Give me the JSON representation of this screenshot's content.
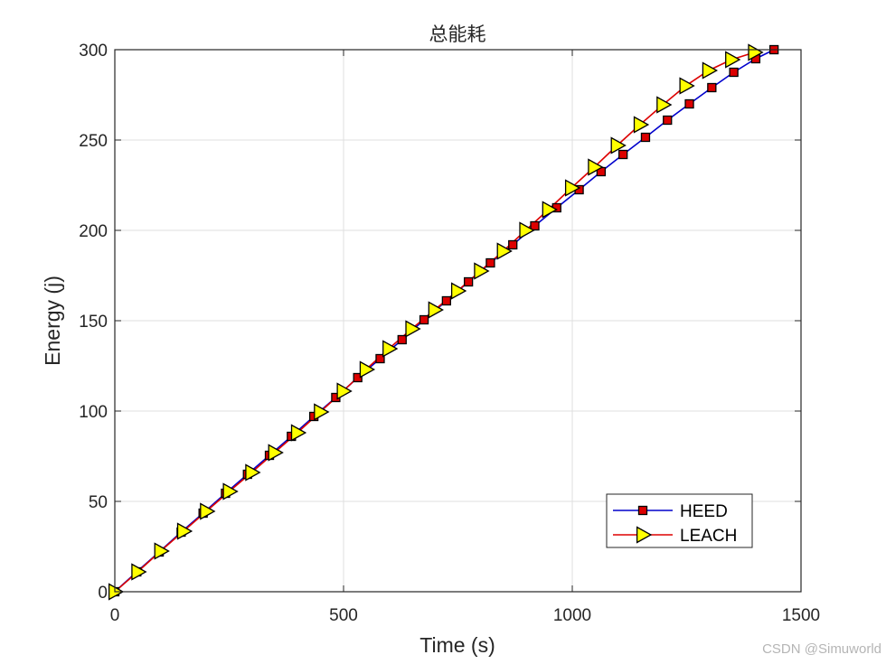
{
  "chart_data": {
    "type": "line",
    "title": "总能耗",
    "xlabel": "Time (s)",
    "ylabel": "Energy (j)",
    "xlim": [
      0,
      1500
    ],
    "ylim": [
      0,
      300
    ],
    "xticks": [
      0,
      500,
      1000,
      1500
    ],
    "yticks": [
      0,
      50,
      100,
      150,
      200,
      250,
      300
    ],
    "grid": true,
    "legend_position": "bottom-right",
    "series": [
      {
        "name": "HEED",
        "color": "#0000cc",
        "marker": "square",
        "marker_fill": "#dd0000",
        "x": [
          0,
          48,
          97,
          145,
          193,
          242,
          290,
          338,
          386,
          435,
          483,
          531,
          580,
          628,
          676,
          725,
          773,
          821,
          870,
          918,
          966,
          1015,
          1063,
          1111,
          1160,
          1208,
          1256,
          1305,
          1353,
          1401,
          1441
        ],
        "y": [
          0,
          11,
          22,
          33,
          43.5,
          54.5,
          65,
          75.5,
          86,
          97,
          107.5,
          118.5,
          129,
          139.5,
          150.5,
          161,
          171.5,
          182,
          192,
          202.5,
          212.5,
          222.5,
          232.5,
          242,
          251.5,
          261,
          270,
          279,
          287.5,
          295,
          300
        ]
      },
      {
        "name": "LEACH",
        "color": "#dd0000",
        "marker": "triangle-right",
        "marker_fill": "#ffff00",
        "x": [
          0,
          50,
          100,
          150,
          200,
          250,
          299,
          349,
          399,
          449,
          499,
          549,
          599,
          649,
          699,
          749,
          799,
          849,
          898,
          948,
          998,
          1048,
          1098,
          1148,
          1198,
          1248,
          1298,
          1348,
          1398
        ],
        "y": [
          0,
          11,
          22.5,
          33.5,
          44.5,
          55.5,
          66,
          77,
          88,
          99.5,
          111,
          123,
          134.5,
          145.5,
          156,
          166.5,
          177.5,
          188.5,
          200,
          211.5,
          223.5,
          235,
          247,
          258.5,
          269.5,
          280,
          288.5,
          294.5,
          298.5
        ]
      }
    ]
  },
  "watermark": "CSDN @Simuworld"
}
